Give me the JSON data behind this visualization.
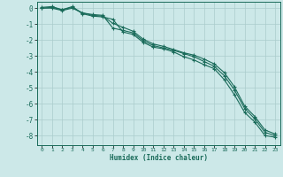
{
  "xlabel": "Humidex (Indice chaleur)",
  "background_color": "#cce8e8",
  "grid_color": "#aacccc",
  "line_color": "#1a6b5a",
  "spine_color": "#1a6b5a",
  "tick_color": "#1a6b5a",
  "xlim": [
    -0.5,
    23.5
  ],
  "ylim": [
    -8.6,
    0.4
  ],
  "x_ticks": [
    0,
    1,
    2,
    3,
    4,
    5,
    6,
    7,
    8,
    9,
    10,
    11,
    12,
    13,
    14,
    15,
    16,
    17,
    18,
    19,
    20,
    21,
    22,
    23
  ],
  "y_ticks": [
    0,
    -1,
    -2,
    -3,
    -4,
    -5,
    -6,
    -7,
    -8
  ],
  "series1_x": [
    0,
    1,
    2,
    3,
    4,
    5,
    6,
    7,
    8,
    9,
    10,
    11,
    12,
    13,
    14,
    15,
    16,
    17,
    18,
    19,
    20,
    21,
    22,
    23
  ],
  "series1_y": [
    0.05,
    0.1,
    -0.1,
    0.1,
    -0.35,
    -0.5,
    -0.55,
    -0.7,
    -1.5,
    -1.65,
    -2.15,
    -2.45,
    -2.55,
    -2.75,
    -3.05,
    -3.25,
    -3.55,
    -3.8,
    -4.5,
    -5.45,
    -6.55,
    -7.15,
    -8.0,
    -8.1
  ],
  "series2_x": [
    0,
    1,
    2,
    3,
    4,
    5,
    6,
    7,
    8,
    9,
    10,
    11,
    12,
    13,
    14,
    15,
    16,
    17,
    18,
    19,
    20,
    21,
    22,
    23
  ],
  "series2_y": [
    0.0,
    0.05,
    -0.1,
    0.05,
    -0.3,
    -0.4,
    -0.45,
    -1.25,
    -1.4,
    -1.55,
    -2.05,
    -2.35,
    -2.5,
    -2.65,
    -2.85,
    -3.05,
    -3.35,
    -3.65,
    -4.25,
    -5.15,
    -6.3,
    -6.95,
    -7.8,
    -8.0
  ],
  "series3_x": [
    0,
    1,
    2,
    3,
    4,
    5,
    6,
    7,
    8,
    9,
    10,
    11,
    12,
    13,
    14,
    15,
    16,
    17,
    18,
    19,
    20,
    21,
    22,
    23
  ],
  "series3_y": [
    0.0,
    0.0,
    -0.15,
    0.0,
    -0.3,
    -0.45,
    -0.5,
    -0.95,
    -1.2,
    -1.45,
    -1.95,
    -2.25,
    -2.4,
    -2.6,
    -2.8,
    -2.95,
    -3.2,
    -3.5,
    -4.05,
    -4.95,
    -6.15,
    -6.8,
    -7.65,
    -7.9
  ]
}
